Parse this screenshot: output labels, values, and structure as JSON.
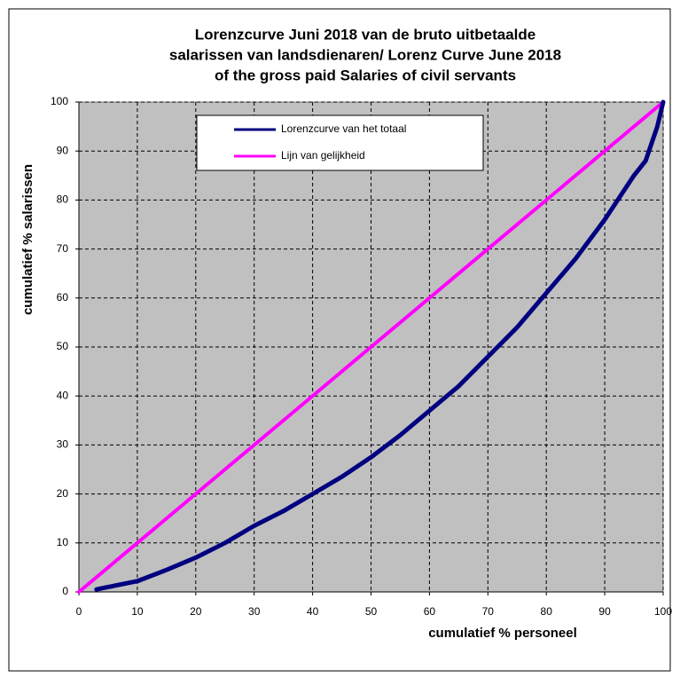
{
  "chart_data": {
    "type": "line",
    "title": [
      "Lorenzcurve Juni 2018 van de bruto uitbetaalde",
      "salarissen van landsdienaren/ Lorenz Curve June 2018",
      "of the gross paid  Salaries of civil servants"
    ],
    "xlabel": "cumulatief % personeel",
    "ylabel": "cumulatief % salarissen",
    "xlim": [
      0,
      100
    ],
    "ylim": [
      0,
      100
    ],
    "xticks": [
      0,
      10,
      20,
      30,
      40,
      50,
      60,
      70,
      80,
      90,
      100
    ],
    "yticks": [
      0,
      10,
      20,
      30,
      40,
      50,
      60,
      70,
      80,
      90,
      100
    ],
    "grid": true,
    "legend": "top",
    "series": [
      {
        "name": "Lorenzcurve  van het totaal",
        "color": "#000080",
        "x": [
          3,
          5,
          10,
          15,
          20,
          25,
          30,
          35,
          40,
          45,
          50,
          55,
          60,
          65,
          70,
          75,
          80,
          85,
          90,
          95,
          97,
          99,
          100
        ],
        "values": [
          0.5,
          1,
          2.2,
          4.5,
          7,
          10,
          13.5,
          16.5,
          20,
          23.5,
          27.5,
          32,
          37,
          42,
          48,
          54,
          61,
          68,
          76,
          85,
          88,
          95,
          100
        ]
      },
      {
        "name": "Lijn van gelijkheid",
        "color": "#ff00ff",
        "x": [
          0,
          100
        ],
        "values": [
          0,
          100
        ]
      }
    ]
  }
}
